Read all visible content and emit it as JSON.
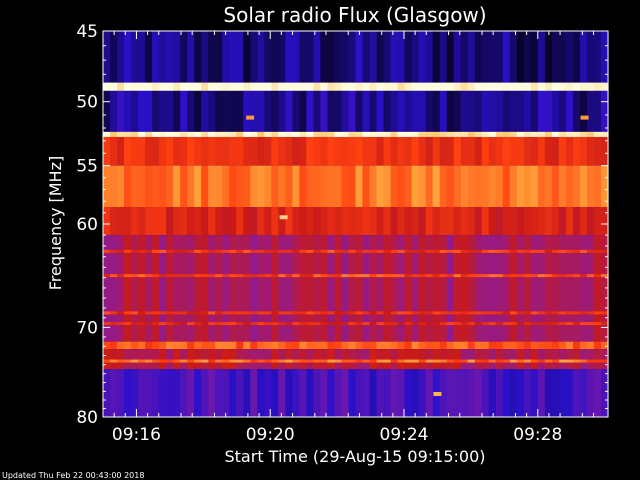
{
  "chart_data": {
    "type": "heatmap",
    "title": "Solar radio Flux (Glasgow)",
    "xlabel": "Start Time (29-Aug-15 09:15:00)",
    "ylabel": "Frequency [MHz]",
    "x_tick_labels": [
      "09:16",
      "09:20",
      "09:24",
      "09:28"
    ],
    "x_tick_minutes": [
      1,
      5,
      9,
      13
    ],
    "x_range_minutes": [
      0,
      15.1
    ],
    "y_tick_labels": [
      "45",
      "50",
      "55",
      "60",
      "70",
      "80"
    ],
    "y_ticks": [
      45,
      50,
      55,
      60,
      70,
      80
    ],
    "ylim": [
      45,
      80
    ],
    "y_scale": "log",
    "bands": [
      {
        "f0": 45.0,
        "f1": 48.6,
        "level": 0.1
      },
      {
        "f0": 48.6,
        "f1": 49.2,
        "level": 1.0
      },
      {
        "f0": 49.2,
        "f1": 52.3,
        "level": 0.12
      },
      {
        "f0": 52.3,
        "f1": 52.7,
        "level": 0.95
      },
      {
        "f0": 52.7,
        "f1": 55.0,
        "level": 0.6
      },
      {
        "f0": 55.0,
        "f1": 58.5,
        "level": 0.75
      },
      {
        "f0": 58.5,
        "f1": 61.0,
        "level": 0.55
      },
      {
        "f0": 61.0,
        "f1": 71.5,
        "level": 0.42
      },
      {
        "f0": 71.5,
        "f1": 72.3,
        "level": 0.7
      },
      {
        "f0": 72.3,
        "f1": 74.5,
        "level": 0.45
      },
      {
        "f0": 74.5,
        "f1": 80.0,
        "level": 0.22
      }
    ],
    "line_features": [
      {
        "freq": 62.5,
        "level": 0.62
      },
      {
        "freq": 64.8,
        "level": 0.65
      },
      {
        "freq": 68.5,
        "level": 0.6
      },
      {
        "freq": 69.6,
        "level": 0.58
      },
      {
        "freq": 73.6,
        "level": 0.72
      }
    ],
    "spots": [
      {
        "minute": 5.4,
        "freq": 59.4,
        "level": 0.9
      },
      {
        "minute": 4.4,
        "freq": 51.2,
        "level": 0.8
      },
      {
        "minute": 14.4,
        "freq": 51.2,
        "level": 0.8
      },
      {
        "minute": 10.0,
        "freq": 77.3,
        "level": 0.85
      }
    ],
    "colormap": [
      "#000000",
      "#2a10c8",
      "#8a1aa0",
      "#c81a18",
      "#ff4010",
      "#ffb040",
      "#ffffe0"
    ]
  },
  "footer": {
    "updated": "Updated Thu Feb 22 00:43:00 2018"
  }
}
